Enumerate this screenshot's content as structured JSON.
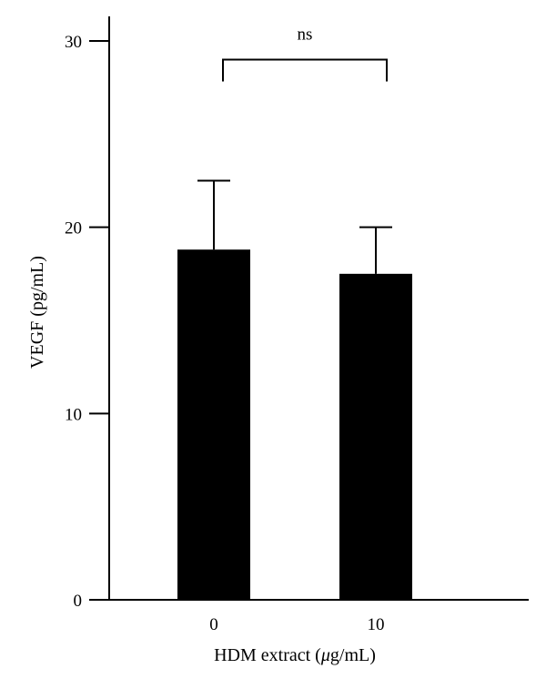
{
  "chart_data": {
    "type": "bar",
    "categories": [
      "0",
      "10"
    ],
    "values": [
      18.8,
      17.5
    ],
    "error_upper": [
      22.5,
      20.0
    ],
    "xlabel_prefix": "HDM extract (",
    "xlabel_mu": "μ",
    "xlabel_suffix": "g/mL)",
    "ylabel": "VEGF (pg/mL)",
    "ylim": [
      0,
      30
    ],
    "yticks": [
      "0",
      "10",
      "20",
      "30"
    ],
    "ytick_values": [
      0,
      10,
      20,
      30
    ],
    "significance": {
      "label": "ns",
      "between": [
        "0",
        "10"
      ],
      "level": 29.0
    },
    "bar_color": "#000000",
    "grid": false,
    "legend": "none"
  }
}
